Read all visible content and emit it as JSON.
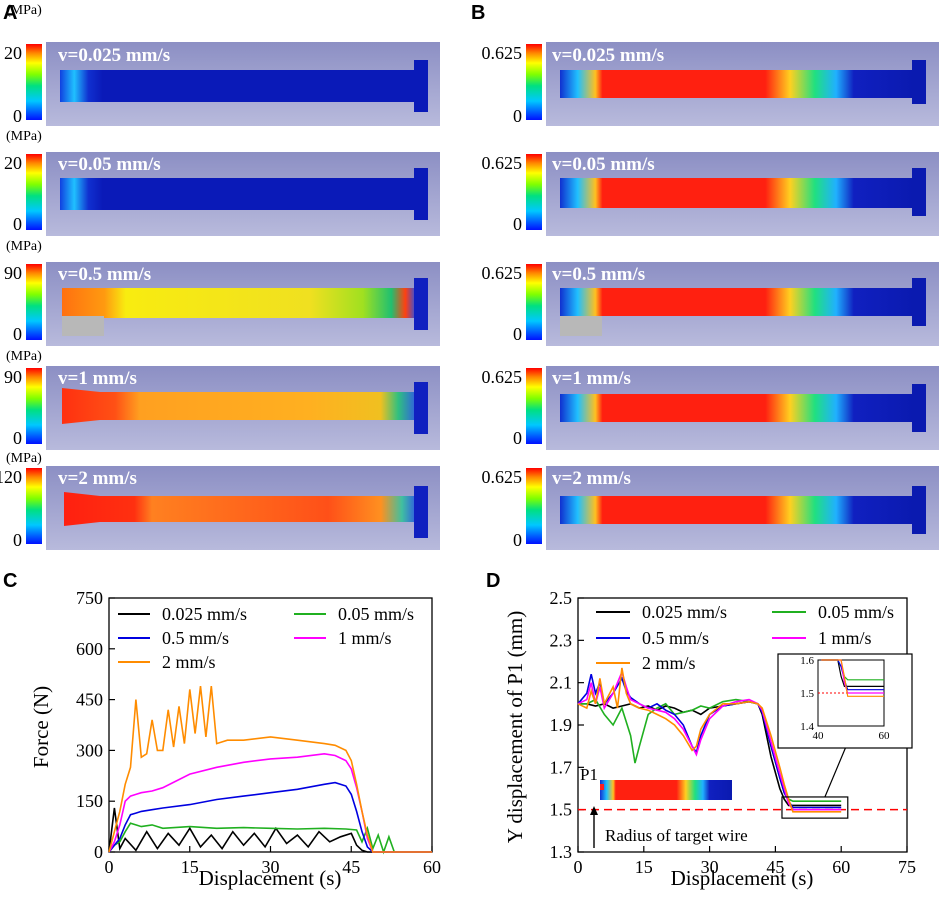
{
  "panels": {
    "a": "A",
    "b": "B",
    "c": "C",
    "d": "D"
  },
  "colorbar_unit": "(MPa)",
  "stress_rows": [
    {
      "label": "v=0.025 mm/s",
      "max": "20",
      "min": "0"
    },
    {
      "label": "v=0.05 mm/s",
      "max": "20",
      "min": "0"
    },
    {
      "label": "v=0.5 mm/s",
      "max": "90",
      "min": "0"
    },
    {
      "label": "v=1 mm/s",
      "max": "90",
      "min": "0"
    },
    {
      "label": "v=2 mm/s",
      "max": "120",
      "min": "0"
    }
  ],
  "strain_rows": [
    {
      "label": "v=0.025 mm/s",
      "max": "0.625",
      "min": "0"
    },
    {
      "label": "v=0.05 mm/s",
      "max": "0.625",
      "min": "0"
    },
    {
      "label": "v=0.5 mm/s",
      "max": "0.625",
      "min": "0"
    },
    {
      "label": "v=1 mm/s",
      "max": "0.625",
      "min": "0"
    },
    {
      "label": "v=2 mm/s",
      "max": "0.625",
      "min": "0"
    }
  ],
  "colors": {
    "c0025": "#000000",
    "c005": "#20b020",
    "c05": "#0000e0",
    "c1": "#ff00ff",
    "c2": "#ff8c00",
    "threshold": "#ff0000",
    "plate": "#9a9cc8"
  },
  "chart_data": [
    {
      "type": "line",
      "title": "",
      "xlabel": "Displacement (s)",
      "ylabel": "Force (N)",
      "xlim": [
        0,
        60
      ],
      "ylim": [
        0,
        750
      ],
      "xticks": [
        "0",
        "15",
        "30",
        "45",
        "60"
      ],
      "yticks": [
        "0",
        "150",
        "300",
        "450",
        "600",
        "750"
      ],
      "series": [
        {
          "name": "0.025 mm/s",
          "x": [
            0,
            1,
            2,
            3,
            5,
            7,
            9,
            11,
            13,
            15,
            17,
            19,
            21,
            23,
            25,
            27,
            29,
            31,
            33,
            35,
            37,
            39,
            41,
            43,
            45,
            46,
            47,
            48,
            50,
            55,
            60
          ],
          "values": [
            0,
            130,
            10,
            40,
            5,
            60,
            10,
            55,
            20,
            70,
            15,
            50,
            10,
            60,
            20,
            55,
            15,
            70,
            25,
            50,
            15,
            60,
            30,
            45,
            55,
            20,
            5,
            0,
            0,
            0,
            0
          ]
        },
        {
          "name": "0.05 mm/s",
          "x": [
            0,
            1,
            2,
            3,
            4,
            5,
            6,
            8,
            10,
            15,
            20,
            25,
            30,
            35,
            40,
            44,
            46,
            47,
            48,
            49,
            50,
            51,
            52,
            53,
            55,
            60
          ],
          "values": [
            0,
            20,
            30,
            60,
            85,
            80,
            75,
            80,
            70,
            75,
            70,
            72,
            70,
            68,
            70,
            68,
            65,
            30,
            70,
            10,
            50,
            0,
            45,
            0,
            0,
            0
          ]
        },
        {
          "name": "0.5 mm/s",
          "x": [
            0,
            1,
            2,
            3,
            4,
            5,
            6,
            8,
            10,
            15,
            20,
            25,
            30,
            35,
            40,
            42,
            44,
            45,
            46,
            47,
            48,
            49,
            50,
            55,
            60
          ],
          "values": [
            0,
            20,
            40,
            80,
            110,
            115,
            120,
            125,
            130,
            140,
            155,
            165,
            175,
            185,
            200,
            205,
            195,
            170,
            120,
            60,
            15,
            0,
            0,
            0,
            0
          ]
        },
        {
          "name": "1 mm/s",
          "x": [
            0,
            1,
            2,
            3,
            4,
            5,
            6,
            8,
            10,
            15,
            20,
            25,
            30,
            35,
            40,
            42,
            44,
            45,
            46,
            47,
            48,
            49,
            50,
            55,
            60
          ],
          "values": [
            0,
            30,
            80,
            150,
            165,
            170,
            175,
            180,
            190,
            230,
            250,
            265,
            275,
            280,
            290,
            285,
            270,
            245,
            190,
            120,
            40,
            0,
            0,
            0,
            0
          ]
        },
        {
          "name": "2 mm/s",
          "x": [
            0,
            1,
            2,
            3,
            4,
            5,
            6,
            7,
            8,
            9,
            10,
            11,
            12,
            13,
            14,
            15,
            16,
            17,
            18,
            19,
            20,
            22,
            25,
            30,
            35,
            40,
            42,
            44,
            45,
            46,
            47,
            48,
            49,
            50,
            55,
            60
          ],
          "values": [
            0,
            60,
            120,
            200,
            250,
            450,
            280,
            290,
            390,
            300,
            300,
            420,
            310,
            430,
            320,
            480,
            350,
            490,
            340,
            490,
            320,
            330,
            330,
            340,
            330,
            320,
            315,
            300,
            270,
            200,
            120,
            50,
            0,
            0,
            0,
            0
          ]
        }
      ],
      "legend_placement": "top-left"
    },
    {
      "type": "line",
      "title": "",
      "xlabel": "Displacement (s)",
      "ylabel": "Y displacement of P1 (mm)",
      "xlim": [
        0,
        75
      ],
      "ylim": [
        1.3,
        2.5
      ],
      "xticks": [
        "0",
        "15",
        "30",
        "45",
        "60",
        "75"
      ],
      "yticks": [
        "1.3",
        "1.5",
        "1.7",
        "1.9",
        "2.1",
        "2.3",
        "2.5"
      ],
      "threshold": 1.5,
      "annotation": "Radius of target wire",
      "point_label": "P1",
      "series": [
        {
          "name": "0.025 mm/s",
          "x": [
            0,
            2,
            4,
            6,
            8,
            10,
            12,
            14,
            16,
            18,
            20,
            22,
            24,
            26,
            28,
            30,
            33,
            36,
            39,
            41,
            42,
            44,
            46,
            47,
            48,
            49,
            50,
            52,
            55,
            60
          ],
          "values": [
            2.0,
            2.0,
            1.99,
            2.0,
            1.98,
            1.99,
            2.0,
            1.98,
            1.99,
            1.97,
            1.99,
            1.98,
            1.96,
            1.97,
            1.95,
            1.98,
            1.99,
            2.0,
            2.01,
            2.0,
            1.95,
            1.75,
            1.6,
            1.55,
            1.52,
            1.52,
            1.52,
            1.52,
            1.52,
            1.52
          ]
        },
        {
          "name": "0.05 mm/s",
          "x": [
            0,
            2,
            4,
            6,
            8,
            10,
            12,
            13,
            14,
            16,
            18,
            20,
            22,
            24,
            26,
            28,
            30,
            33,
            36,
            39,
            41,
            42,
            44,
            46,
            47,
            48,
            49,
            50,
            52,
            55,
            60
          ],
          "values": [
            2.0,
            2.0,
            2.02,
            1.95,
            1.9,
            1.98,
            1.85,
            1.72,
            1.8,
            1.95,
            1.98,
            2.0,
            1.95,
            1.96,
            1.97,
            1.99,
            1.98,
            2.01,
            2.02,
            2.01,
            2.0,
            1.97,
            1.8,
            1.65,
            1.58,
            1.55,
            1.54,
            1.54,
            1.54,
            1.54,
            1.54
          ]
        },
        {
          "name": "0.5 mm/s",
          "x": [
            0,
            2,
            3,
            4,
            5,
            6,
            8,
            10,
            11,
            12,
            14,
            16,
            18,
            20,
            22,
            24,
            26,
            27,
            28,
            30,
            33,
            36,
            39,
            41,
            42,
            44,
            46,
            47,
            48,
            49,
            50,
            52,
            55,
            60
          ],
          "values": [
            2.0,
            2.05,
            2.14,
            2.05,
            2.1,
            2.0,
            2.05,
            2.12,
            2.06,
            2.03,
            2.0,
            1.98,
            2.0,
            1.97,
            1.95,
            1.9,
            1.8,
            1.77,
            1.85,
            1.95,
            1.99,
            2.0,
            2.01,
            2.0,
            1.96,
            1.8,
            1.65,
            1.58,
            1.54,
            1.51,
            1.51,
            1.51,
            1.51,
            1.51
          ]
        },
        {
          "name": "1 mm/s",
          "x": [
            0,
            2,
            3,
            4,
            5,
            6,
            8,
            10,
            11,
            12,
            14,
            16,
            18,
            20,
            22,
            24,
            26,
            27,
            28,
            30,
            33,
            36,
            39,
            41,
            42,
            44,
            46,
            47,
            48,
            49,
            50,
            52,
            55,
            60
          ],
          "values": [
            2.0,
            2.02,
            2.1,
            2.0,
            2.08,
            1.98,
            2.05,
            2.15,
            2.08,
            2.02,
            2.0,
            1.98,
            1.97,
            1.96,
            1.93,
            1.88,
            1.8,
            1.76,
            1.83,
            1.93,
            1.99,
            2.01,
            2.02,
            2.0,
            1.97,
            1.82,
            1.67,
            1.6,
            1.53,
            1.5,
            1.5,
            1.5,
            1.5,
            1.5
          ]
        },
        {
          "name": "2 mm/s",
          "x": [
            0,
            2,
            3,
            4,
            5,
            6,
            8,
            9,
            10,
            11,
            12,
            14,
            16,
            18,
            20,
            22,
            24,
            26,
            27,
            28,
            30,
            33,
            36,
            39,
            41,
            42,
            44,
            46,
            47,
            48,
            49,
            50,
            52,
            55,
            60
          ],
          "values": [
            2.0,
            1.98,
            2.06,
            2.0,
            2.12,
            2.0,
            2.08,
            1.98,
            2.17,
            2.05,
            2.0,
            1.98,
            1.97,
            1.95,
            1.93,
            1.9,
            1.85,
            1.78,
            1.8,
            1.88,
            1.95,
            2.0,
            2.0,
            2.01,
            2.0,
            1.98,
            1.85,
            1.7,
            1.62,
            1.55,
            1.49,
            1.49,
            1.49,
            1.49,
            1.49
          ]
        }
      ],
      "inset": {
        "xlim": [
          40,
          60
        ],
        "ylim": [
          1.4,
          1.6
        ],
        "xticks": [
          "40",
          "60"
        ],
        "yticks": [
          "1.4",
          "1.5",
          "1.6"
        ]
      },
      "legend_placement": "top"
    }
  ]
}
